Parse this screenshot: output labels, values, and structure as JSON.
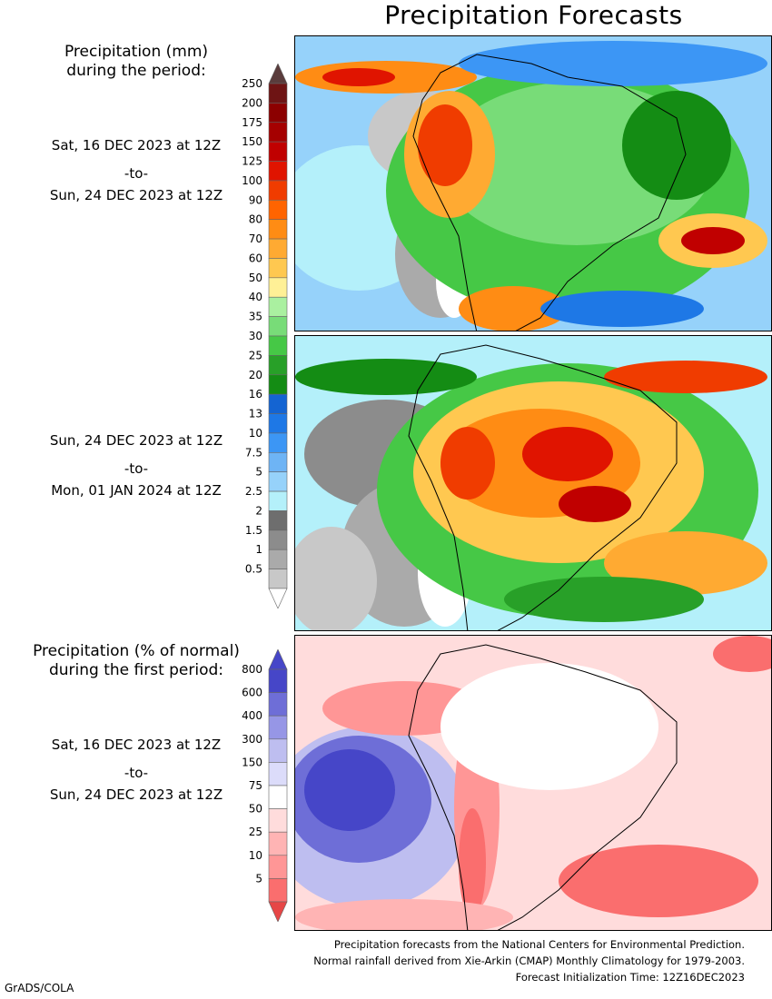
{
  "title": "Precipitation Forecasts",
  "legend_mm": {
    "heading_line1": "Precipitation (mm)",
    "heading_line2": "during the period:",
    "levels": [
      "250",
      "200",
      "175",
      "150",
      "125",
      "100",
      "90",
      "80",
      "70",
      "60",
      "50",
      "40",
      "35",
      "30",
      "25",
      "20",
      "16",
      "13",
      "10",
      "7.5",
      "5",
      "2.5",
      "2",
      "1.5",
      "1",
      "0.5"
    ],
    "colors": [
      "#6e1414",
      "#8c0000",
      "#a50000",
      "#c00000",
      "#e01400",
      "#f03c00",
      "#ff6400",
      "#ff8c14",
      "#ffaa32",
      "#ffc850",
      "#fff096",
      "#aaf0a0",
      "#78dc78",
      "#46c846",
      "#28a028",
      "#148c14",
      "#1464d2",
      "#1e78e6",
      "#3c96f5",
      "#6eb4f5",
      "#96d2fa",
      "#b4f0fa",
      "#6e6e6e",
      "#8c8c8c",
      "#aaaaaa",
      "#c8c8c8"
    ],
    "top_arrow_color": "#5a3c3c",
    "bottom_arrow_color": "#ffffff"
  },
  "period1": {
    "start": "Sat, 16 DEC 2023 at 12Z",
    "to": "-to-",
    "end": "Sun, 24 DEC 2023 at 12Z"
  },
  "period2": {
    "start": "Sun, 24 DEC 2023 at 12Z",
    "to": "-to-",
    "end": "Mon, 01 JAN 2024 at 12Z"
  },
  "legend_pct": {
    "heading_line1": "Precipitation (% of normal)",
    "heading_line2": "during the first period:",
    "levels": [
      "800",
      "600",
      "400",
      "300",
      "150",
      "75",
      "50",
      "25",
      "10",
      "5"
    ],
    "colors": [
      "#4646c8",
      "#6e6ed7",
      "#9696e6",
      "#bebef0",
      "#dcdcfa",
      "#ffffff",
      "#ffdcdc",
      "#ffb4b4",
      "#ff9696",
      "#fa6e6e"
    ],
    "top_arrow_color": "#4646c8",
    "bottom_arrow_color": "#e64646"
  },
  "period3": {
    "start": "Sat, 16 DEC 2023 at 12Z",
    "to": "-to-",
    "end": "Sun, 24 DEC 2023 at 12Z"
  },
  "footer": {
    "line1": "Precipitation forecasts from the National Centers for Environmental Prediction.",
    "line2": "Normal rainfall derived from Xie-Arkin (CMAP) Monthly Climatology for 1979-2003.",
    "line3": "Forecast Initialization Time: 12Z16DEC2023"
  },
  "credit": "GrADS/COLA"
}
